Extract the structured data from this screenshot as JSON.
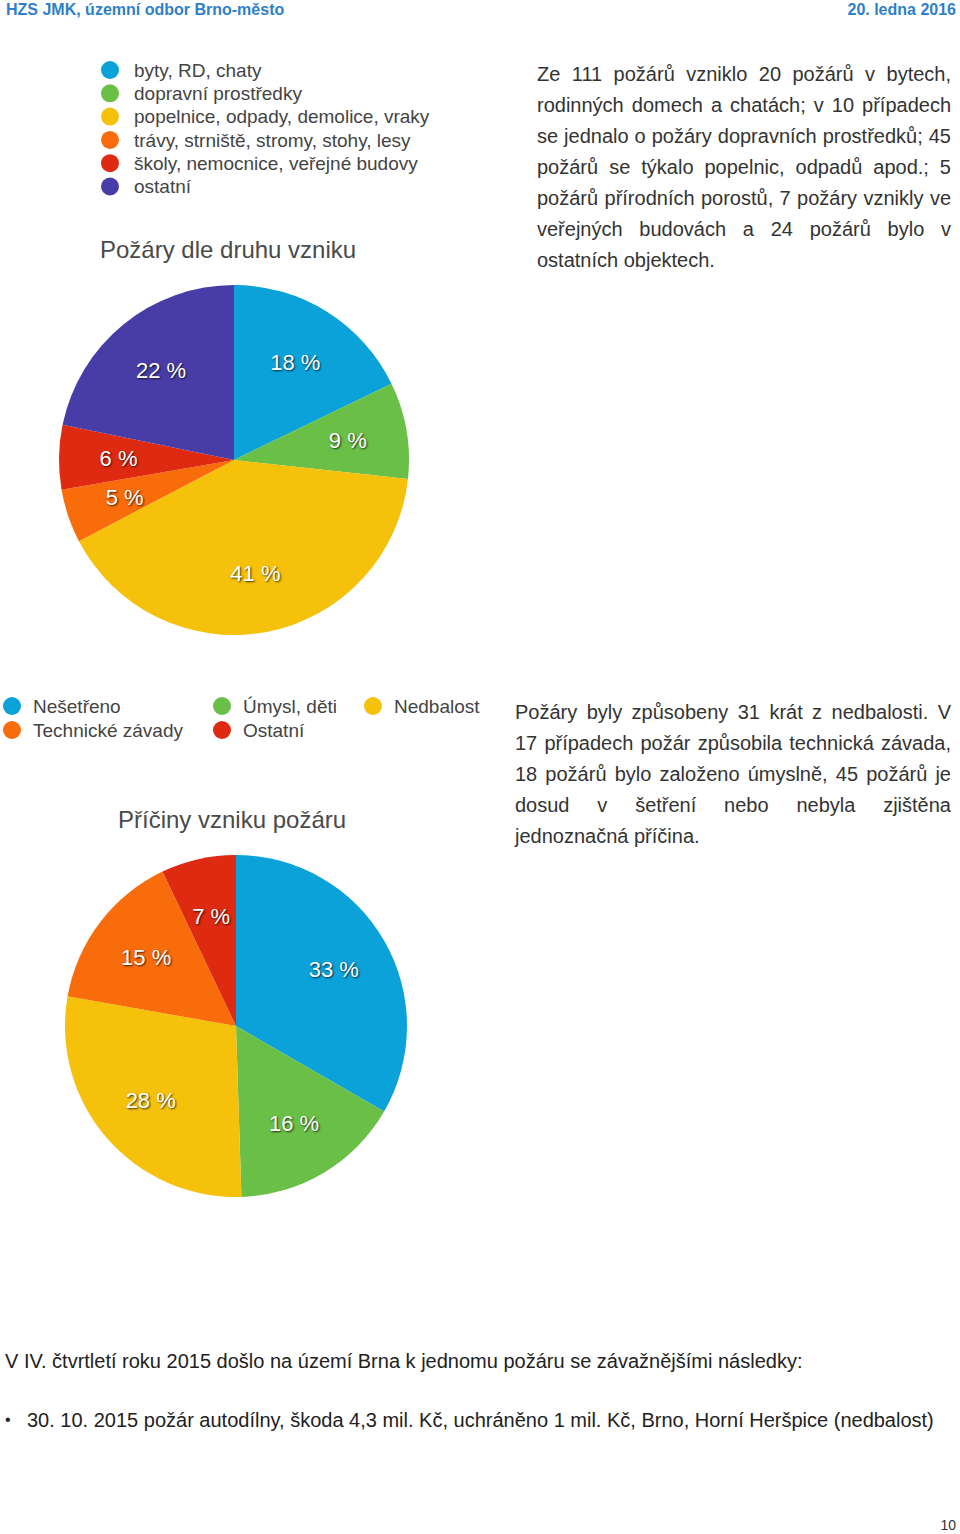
{
  "header": {
    "left": "HZS JMK, územní odbor Brno-město",
    "right": "20. ledna 2016"
  },
  "chart_data": [
    {
      "type": "pie",
      "title": "Požáry dle druhu vzniku",
      "categories": [
        "byty, RD, chaty",
        "dopravní prostředky",
        "popelnice, odpady, demolice, vraky",
        "trávy, strniště, stromy, stohy, lesy",
        "školy, nemocnice, veřejné budovy",
        "ostatní"
      ],
      "values": [
        18,
        9,
        41,
        5,
        6,
        22
      ],
      "value_labels": [
        "18 %",
        "9 %",
        "41 %",
        "5 %",
        "6 %",
        "22 %"
      ],
      "colors": [
        "#0aa2d9",
        "#6abf47",
        "#f5c10a",
        "#f96c0c",
        "#dd2a10",
        "#483da6"
      ],
      "data_labels": true
    },
    {
      "type": "pie",
      "title": "Příčiny vzniku požáru",
      "categories": [
        "Nešetřeno",
        "Úmysl, děti",
        "Nedbalost",
        "Technické závady",
        "Ostatní"
      ],
      "values": [
        33,
        16,
        28,
        15,
        7
      ],
      "value_labels": [
        "33 %",
        "16 %",
        "28 %",
        "15 %",
        "7 %"
      ],
      "colors": [
        "#0aa2d9",
        "#6abf47",
        "#f5c10a",
        "#f96c0c",
        "#dd2a10"
      ],
      "data_labels": true
    }
  ],
  "paragraphs": [
    "Ze 111 požárů vzniklo 20 požárů v bytech, rodinných domech a chatách; v 10 případech se jednalo o požáry dopravních prostředků; 45 požárů se týkalo popelnic, odpadů apod.; 5 požárů přírodních porostů, 7 požáry vznikly ve veřejných budovách a 24 požárů bylo v ostatních objektech.",
    "Požáry byly způsobeny 31 krát z nedbalosti. V 17 případech požár způsobila technická závada, 18 požárů bylo založeno úmyslně, 45 požárů je dosud v šetření nebo nebyla zjištěna jednoznačná příčina."
  ],
  "summary": "V IV. čtvrtletí roku 2015 došlo na území Brna k jednomu požáru se závažnějšími následky:",
  "incidents": [
    "30. 10. 2015 požár autodílny, škoda 4,3 mil. Kč, uchráněno 1 mil. Kč,   Brno, Horní Heršpice (nedbalost)"
  ],
  "page_number": "10"
}
